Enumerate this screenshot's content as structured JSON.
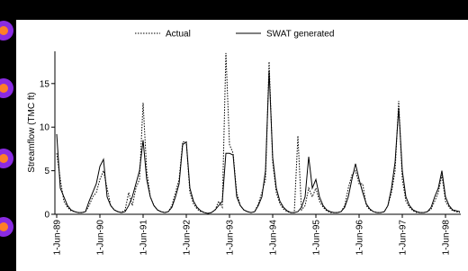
{
  "chart_data": {
    "type": "line",
    "y_label": "Streamflow (TMC ft)",
    "categories": [
      "1-Jun-89",
      null,
      null,
      null,
      null,
      null,
      null,
      null,
      null,
      null,
      null,
      null,
      "1-Jun-90",
      null,
      null,
      null,
      null,
      null,
      null,
      null,
      null,
      null,
      null,
      null,
      "1-Jun-91",
      null,
      null,
      null,
      null,
      null,
      null,
      null,
      null,
      null,
      null,
      null,
      "1-Jun-92",
      null,
      null,
      null,
      null,
      null,
      null,
      null,
      null,
      null,
      null,
      null,
      "1-Jun-93",
      null,
      null,
      null,
      null,
      null,
      null,
      null,
      null,
      null,
      null,
      null,
      "1-Jun-94",
      null,
      null,
      null,
      null,
      null,
      null,
      null,
      null,
      null,
      null,
      null,
      "1-Jun-95",
      null,
      null,
      null,
      null,
      null,
      null,
      null,
      null,
      null,
      null,
      null,
      "1-Jun-96",
      null,
      null,
      null,
      null,
      null,
      null,
      null,
      null,
      null,
      null,
      null,
      "1-Jun-97",
      null,
      null,
      null,
      null,
      null,
      null,
      null,
      null,
      null,
      null,
      null,
      "1-Jun-98",
      null,
      null,
      null,
      null
    ],
    "series": [
      {
        "name": "Actual",
        "color": "#000000",
        "dash": "dotted",
        "values": [
          7,
          4,
          1.5,
          0.8,
          0.4,
          0.3,
          0.2,
          0.2,
          0.3,
          1,
          2,
          2.5,
          4,
          5,
          3,
          1,
          0.5,
          0.3,
          0.2,
          0.5,
          2.5,
          1,
          3,
          4,
          12.8,
          5,
          2,
          1,
          0.5,
          0.3,
          0.2,
          0.3,
          1,
          2.5,
          4,
          8.3,
          8.3,
          2.5,
          1.2,
          0.6,
          0.3,
          0.2,
          0.1,
          0.2,
          0.5,
          1.5,
          0.8,
          18.5,
          8,
          7,
          2.5,
          1,
          0.5,
          0.3,
          0.2,
          0.3,
          1.2,
          2.5,
          4,
          17.5,
          6,
          2.5,
          1.2,
          0.6,
          0.3,
          0.2,
          0.2,
          9,
          0.5,
          1,
          3,
          2,
          3,
          1.5,
          0.8,
          0.4,
          0.2,
          0.2,
          0.2,
          0.3,
          1,
          3,
          4.5,
          5,
          3.5,
          3.5,
          1,
          0.5,
          0.3,
          0.2,
          0.2,
          0.3,
          1,
          2.5,
          5,
          13,
          4,
          1.5,
          0.8,
          0.4,
          0.2,
          0.2,
          0.2,
          0.3,
          0.6,
          1.5,
          2.5,
          4.5,
          1.5,
          0.8,
          0.4,
          0.3,
          0.2
        ]
      },
      {
        "name": "SWAT generated",
        "color": "#000000",
        "dash": "solid",
        "values": [
          9.2,
          3,
          2,
          1,
          0.5,
          0.3,
          0.2,
          0.2,
          0.3,
          1.5,
          2.5,
          3.5,
          5.5,
          6.3,
          2,
          1,
          0.5,
          0.3,
          0.2,
          0.3,
          1,
          2,
          3.5,
          5,
          8.5,
          4,
          2,
          1,
          0.5,
          0.3,
          0.2,
          0.3,
          0.8,
          2,
          3.5,
          8,
          8.3,
          3,
          1.5,
          0.8,
          0.4,
          0.2,
          0.1,
          0.2,
          0.5,
          1,
          1.5,
          7,
          7,
          6.8,
          2,
          1,
          0.5,
          0.3,
          0.2,
          0.3,
          1,
          2,
          5,
          16.5,
          6.5,
          3,
          1.5,
          0.8,
          0.4,
          0.2,
          0.2,
          0.3,
          0.8,
          2,
          6.6,
          3,
          4,
          2,
          1,
          0.5,
          0.3,
          0.2,
          0.2,
          0.3,
          0.8,
          2,
          4,
          5.8,
          4,
          2.5,
          1.2,
          0.6,
          0.3,
          0.2,
          0.2,
          0.3,
          1,
          3,
          6,
          12.2,
          5,
          2,
          1,
          0.5,
          0.3,
          0.2,
          0.2,
          0.3,
          0.8,
          2,
          3,
          5,
          2,
          1,
          0.5,
          0.4,
          0.3
        ]
      }
    ],
    "ylim": [
      0,
      18.7
    ],
    "yticks": [
      0,
      5,
      10,
      15
    ],
    "grid": false
  }
}
